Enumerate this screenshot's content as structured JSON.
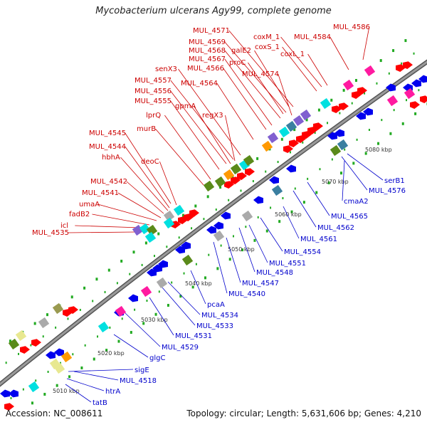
{
  "title": "Mycobacterium ulcerans Agy99, complete genome",
  "footer": {
    "accession_label": "Accession: ",
    "accession": "NC_008611",
    "topology_label": "Topology: ",
    "topology": "circular",
    "length_label": "; Length: ",
    "length": "5,631,606 bp",
    "genes_label": "; Genes: ",
    "genes": "4,210"
  },
  "colors": {
    "backbone": "#8a8a8a",
    "backbone_edge": "#555555",
    "forward_gene": "#ff0000",
    "reverse_gene": "#0000ee",
    "forward_label": "#cc0000",
    "reverse_label": "#0000cc",
    "tick": "#22aa22",
    "cog_green": "#5a8a1a",
    "cog_cyan": "#00e0e0",
    "cog_magenta": "#ff1aa0",
    "cog_grey": "#aaaaaa",
    "cog_purple": "#8060d0",
    "cog_orange": "#ff9900",
    "cog_olive": "#9a9a50",
    "cog_yellow": "#e8e890",
    "cog_teal": "#3a7fa0"
  },
  "ticks": [
    "5010 kbp",
    "5020 kbp",
    "5030 kbp",
    "5040 kbp",
    "5050 kbp",
    "5060 kbp",
    "5070 kbp",
    "5080 kbp"
  ],
  "forward_labels": [
    "MUL_4586",
    "MUL_4571",
    "coxM_1",
    "MUL_4584",
    "MUL_4569",
    "coxS_1",
    "MUL_4568",
    "galE2",
    "coxL_1",
    "proC",
    "MUL_4567",
    "MUL_4566",
    "MUL_4574",
    "senX3",
    "MUL_4557",
    "MUL_4564",
    "MUL_4556",
    "MUL_4555",
    "gpmA",
    "lprQ",
    "regX3",
    "murB",
    "MUL_4545",
    "MUL_4544",
    "hbhA",
    "deoC",
    "MUL_4542",
    "MUL_4541",
    "umaA",
    "fadB2",
    "icl",
    "MUL_4535"
  ],
  "reverse_labels": [
    "serB1",
    "MUL_4576",
    "cmaA2",
    "MUL_4565",
    "MUL_4562",
    "MUL_4561",
    "MUL_4554",
    "MUL_4551",
    "MUL_4548",
    "MUL_4547",
    "MUL_4540",
    "pcaA",
    "MUL_4534",
    "MUL_4533",
    "MUL_4531",
    "MUL_4529",
    "glgC",
    "sigE",
    "MUL_4518",
    "htrA",
    "tatB"
  ]
}
